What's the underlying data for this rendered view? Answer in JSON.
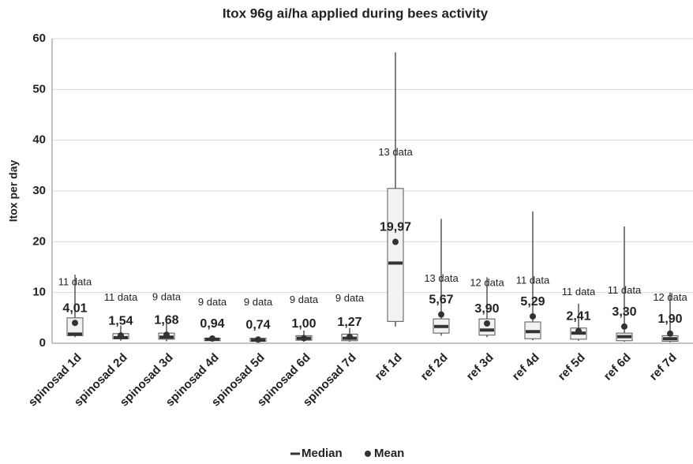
{
  "chart_data": {
    "type": "box",
    "title": "Itox 96g ai/ha applied during bees activity",
    "y_label": "Itox per day",
    "ylim": [
      0,
      60
    ],
    "yticks": [
      0,
      10,
      20,
      30,
      40,
      50,
      60
    ],
    "grid": true,
    "categories": [
      "spinosad 1d",
      "spinosad 2d",
      "spinosad 3d",
      "spinosad 4d",
      "spinosad 5d",
      "spinosad 6d",
      "spinosad 7d",
      "ref 1d",
      "ref 2d",
      "ref 3d",
      "ref 4d",
      "ref 5d",
      "ref 6d",
      "ref 7d"
    ],
    "min": [
      1.2,
      0.5,
      0.4,
      0.3,
      0.2,
      0.3,
      0.3,
      3.3,
      1.5,
      1.2,
      0.6,
      0.5,
      0.3,
      0.2
    ],
    "q1": [
      1.5,
      0.9,
      0.8,
      0.5,
      0.4,
      0.6,
      0.5,
      4.3,
      2.0,
      1.6,
      0.9,
      0.8,
      0.5,
      0.4
    ],
    "median": [
      1.8,
      1.1,
      1.2,
      0.8,
      0.6,
      1.0,
      1.0,
      15.8,
      3.3,
      2.6,
      2.3,
      2.0,
      1.3,
      0.9
    ],
    "q3": [
      5.0,
      1.9,
      2.0,
      1.0,
      1.0,
      1.5,
      1.8,
      30.5,
      4.8,
      4.8,
      4.2,
      3.0,
      2.0,
      1.5
    ],
    "max": [
      13.5,
      3.5,
      4.0,
      1.5,
      1.3,
      2.5,
      3.0,
      57.3,
      24.5,
      13.0,
      26.0,
      7.8,
      23.0,
      10.0
    ],
    "mean": [
      4.01,
      1.54,
      1.68,
      0.94,
      0.74,
      1.0,
      1.27,
      19.97,
      5.67,
      3.9,
      5.29,
      2.41,
      3.3,
      1.9
    ],
    "mean_labels": [
      "4,01",
      "1,54",
      "1,68",
      "0,94",
      "0,74",
      "1,00",
      "1,27",
      "19,97",
      "5,67",
      "3,90",
      "5,29",
      "2,41",
      "3,30",
      "1,90"
    ],
    "n_labels": [
      "11 data",
      "11 data",
      "9 data",
      "9 data",
      "9 data",
      "9 data",
      "9 data",
      "13 data",
      "13 data",
      "12 data",
      "11 data",
      "11 data",
      "11 data",
      "12 data"
    ],
    "legend": {
      "median": "Median",
      "mean": "Mean"
    },
    "box_color": "#f2f2f2",
    "mark_color": "#333333"
  }
}
